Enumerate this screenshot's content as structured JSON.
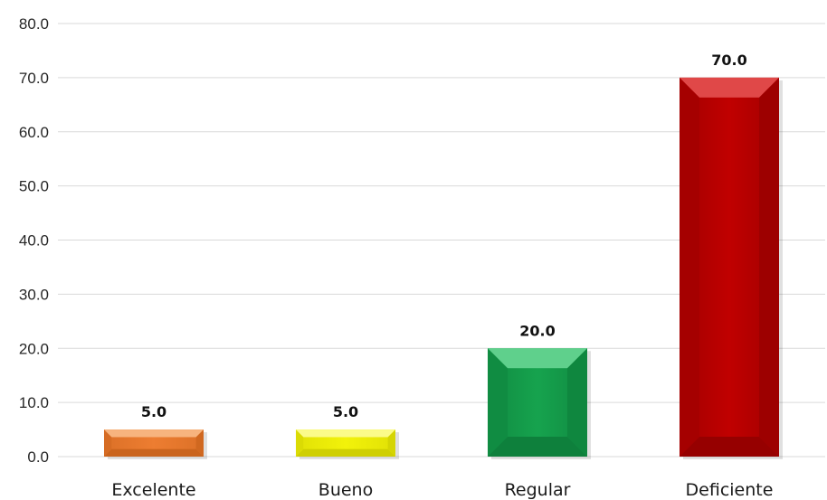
{
  "chart_data": {
    "type": "bar",
    "categories": [
      "Excelente",
      "Bueno",
      "Regular",
      "Deficiente"
    ],
    "values": [
      5.0,
      5.0,
      20.0,
      70.0
    ],
    "data_labels": [
      "5.0",
      "5.0",
      "20.0",
      "70.0"
    ],
    "y_ticks": [
      "0.0",
      "10.0",
      "20.0",
      "30.0",
      "40.0",
      "50.0",
      "60.0",
      "70.0",
      "80.0"
    ],
    "ylim": [
      0,
      80
    ],
    "title": "",
    "xlabel": "",
    "ylabel": "",
    "grid": true,
    "legend": "none",
    "bar_colors": [
      {
        "base": "#ED7D31",
        "light": "#F7B47E",
        "dark": "#C35F1A"
      },
      {
        "base": "#F2F20A",
        "light": "#FBFB8A",
        "dark": "#C9C900"
      },
      {
        "base": "#16A34E",
        "light": "#5FD08C",
        "dark": "#0D7A39"
      },
      {
        "base": "#C00000",
        "light": "#E04848",
        "dark": "#8E0000"
      }
    ]
  }
}
